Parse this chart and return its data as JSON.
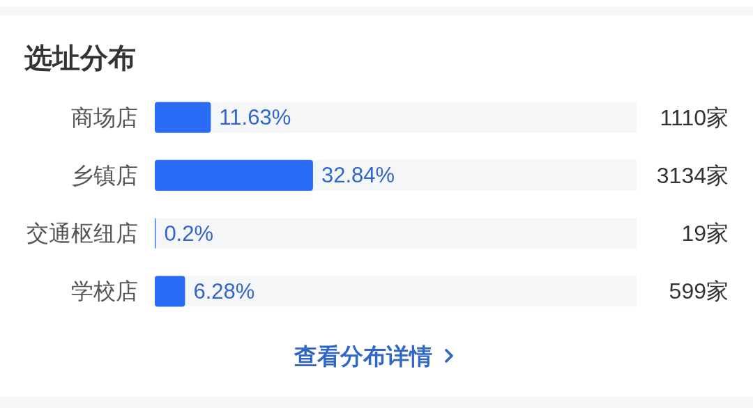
{
  "chart_data": {
    "type": "bar",
    "orientation": "horizontal",
    "title": "选址分布",
    "categories": [
      "商场店",
      "乡镇店",
      "交通枢纽店",
      "学校店"
    ],
    "values": [
      11.63,
      32.84,
      0.2,
      6.28
    ],
    "value_labels": [
      "11.63%",
      "32.84%",
      "0.2%",
      "6.28%"
    ],
    "color": "#2a6cf6",
    "xlim": [
      0,
      100
    ],
    "tick_labels": "y",
    "annotations": [
      "1110家",
      "3134家",
      "19家",
      "599家",
      "查看分布详情"
    ]
  }
}
